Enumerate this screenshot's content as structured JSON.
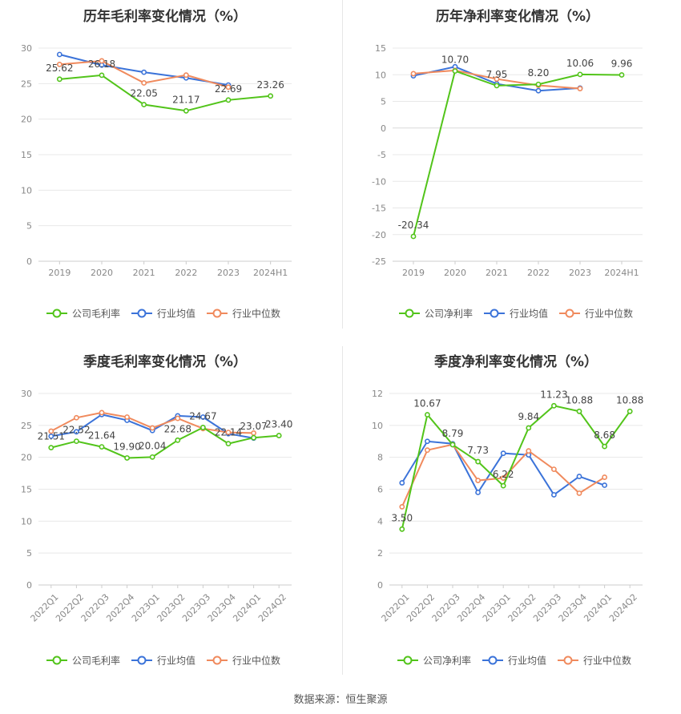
{
  "chart_data": [
    {
      "type": "line",
      "title": "历年毛利率变化情况（%）",
      "categories": [
        "2019",
        "2020",
        "2021",
        "2022",
        "2023",
        "2024H1"
      ],
      "ylim": [
        0,
        30
      ],
      "yticks": [
        0,
        5,
        10,
        15,
        20,
        25,
        30
      ],
      "grid": true,
      "legend_position": "bottom",
      "series": [
        {
          "name": "公司毛利率",
          "color": "#52c41a",
          "values": [
            25.62,
            26.18,
            22.05,
            21.17,
            22.69,
            23.26
          ],
          "labels": [
            "25.62",
            "26.18",
            "22.05",
            "21.17",
            "22.69",
            "23.26"
          ]
        },
        {
          "name": "行业均值",
          "color": "#3b73d9",
          "values": [
            29.1,
            27.6,
            26.6,
            25.8,
            24.8,
            null
          ]
        },
        {
          "name": "行业中位数",
          "color": "#f08a5d",
          "values": [
            27.7,
            28.2,
            25.1,
            26.2,
            24.5,
            null
          ]
        }
      ]
    },
    {
      "type": "line",
      "title": "历年净利率变化情况（%）",
      "categories": [
        "2019",
        "2020",
        "2021",
        "2022",
        "2023",
        "2024H1"
      ],
      "ylim": [
        -25,
        15
      ],
      "yticks": [
        -25,
        -20,
        -15,
        -10,
        -5,
        0,
        5,
        10,
        15
      ],
      "grid": true,
      "legend_position": "bottom",
      "series": [
        {
          "name": "公司净利率",
          "color": "#52c41a",
          "values": [
            -20.34,
            10.7,
            7.95,
            8.2,
            10.06,
            9.96
          ],
          "labels": [
            "-20.34",
            "10.70",
            "7.95",
            "8.20",
            "10.06",
            "9.96"
          ]
        },
        {
          "name": "行业均值",
          "color": "#3b73d9",
          "values": [
            9.8,
            11.5,
            8.3,
            7.0,
            7.5,
            null
          ]
        },
        {
          "name": "行业中位数",
          "color": "#f08a5d",
          "values": [
            10.2,
            10.8,
            9.2,
            8.0,
            7.4,
            null
          ]
        }
      ]
    },
    {
      "type": "line",
      "title": "季度毛利率变化情况（%）",
      "categories": [
        "2022Q1",
        "2022Q2",
        "2022Q3",
        "2022Q4",
        "2023Q1",
        "2023Q2",
        "2023Q3",
        "2023Q4",
        "2024Q1",
        "2024Q2"
      ],
      "ylim": [
        0,
        30
      ],
      "yticks": [
        0,
        5,
        10,
        15,
        20,
        25,
        30
      ],
      "grid": true,
      "legend_position": "bottom",
      "series": [
        {
          "name": "公司毛利率",
          "color": "#52c41a",
          "values": [
            21.51,
            22.52,
            21.64,
            19.9,
            20.04,
            22.68,
            24.67,
            22.14,
            23.07,
            23.4
          ],
          "labels": [
            "21.51",
            "22.52",
            "21.64",
            "19.90",
            "20.04",
            "22.68",
            "24.67",
            "22.14",
            "23.07",
            "23.40"
          ]
        },
        {
          "name": "行业均值",
          "color": "#3b73d9",
          "values": [
            23.3,
            24.0,
            26.7,
            25.8,
            24.2,
            26.5,
            26.3,
            23.7,
            23.0,
            null
          ]
        },
        {
          "name": "行业中位数",
          "color": "#f08a5d",
          "values": [
            24.1,
            26.2,
            27.0,
            26.3,
            24.6,
            26.1,
            24.5,
            23.9,
            23.8,
            null
          ]
        }
      ]
    },
    {
      "type": "line",
      "title": "季度净利率变化情况（%）",
      "categories": [
        "2022Q1",
        "2022Q2",
        "2022Q3",
        "2022Q4",
        "2023Q1",
        "2023Q2",
        "2023Q3",
        "2023Q4",
        "2024Q1",
        "2024Q2"
      ],
      "ylim": [
        0,
        12
      ],
      "yticks": [
        0,
        2,
        4,
        6,
        8,
        10,
        12
      ],
      "grid": true,
      "legend_position": "bottom",
      "series": [
        {
          "name": "公司净利率",
          "color": "#52c41a",
          "values": [
            3.5,
            10.67,
            8.79,
            7.73,
            6.22,
            9.84,
            11.23,
            10.88,
            8.68,
            10.88
          ],
          "labels": [
            "3.50",
            "10.67",
            "8.79",
            "7.73",
            "6.22",
            "9.84",
            "11.23",
            "10.88",
            "8.68",
            "10.88"
          ]
        },
        {
          "name": "行业均值",
          "color": "#3b73d9",
          "values": [
            6.4,
            9.0,
            8.85,
            5.8,
            8.25,
            8.15,
            5.65,
            6.8,
            6.25,
            null
          ]
        },
        {
          "name": "行业中位数",
          "color": "#f08a5d",
          "values": [
            4.9,
            8.45,
            8.8,
            6.55,
            6.7,
            8.4,
            7.25,
            5.75,
            6.75,
            null
          ]
        }
      ]
    }
  ],
  "footer": {
    "source": "数据来源：恒生聚源"
  }
}
